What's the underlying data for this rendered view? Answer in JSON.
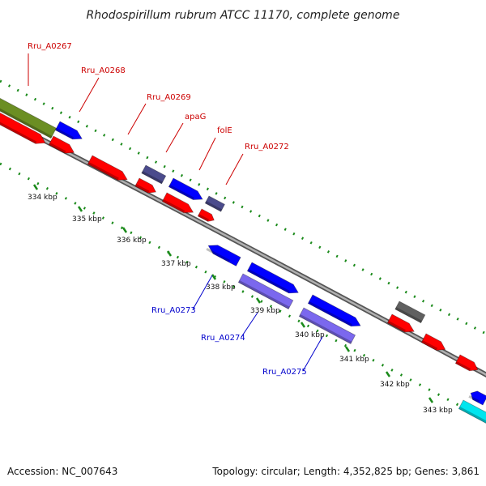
{
  "title": "Rhodospirillum rubrum ATCC 11170, complete genome",
  "footer": {
    "accession": "Accession: NC_007643",
    "topology": "Topology: circular; Length: 4,352,825 bp; Genes: 3,861"
  },
  "colors": {
    "backbone": "#8a8a8a",
    "tick_dots": "#1a8a1a",
    "forward_label": "#cc0000",
    "reverse_label": "#0000cc",
    "gene_red": "#ff0000",
    "gene_blue": "#0000ff",
    "gene_navy": "#4b4b8c",
    "gene_lavender": "#7b68ee",
    "gene_olive": "#6b8e23",
    "gene_gray": "#606060",
    "gene_cyan": "#00e5ee"
  },
  "ticks": [
    {
      "label": "334 kbp"
    },
    {
      "label": "335 kbp"
    },
    {
      "label": "336 kbp"
    },
    {
      "label": "337 kbp"
    },
    {
      "label": "338 kbp"
    },
    {
      "label": "339 kbp"
    },
    {
      "label": "340 kbp"
    },
    {
      "label": "341 kbp"
    },
    {
      "label": "342 kbp"
    },
    {
      "label": "343 kbp"
    }
  ],
  "gene_labels": [
    {
      "text": "Rru_A0267",
      "strand": "forward"
    },
    {
      "text": "Rru_A0268",
      "strand": "forward"
    },
    {
      "text": "Rru_A0269",
      "strand": "forward"
    },
    {
      "text": "apaG",
      "strand": "forward"
    },
    {
      "text": "folE",
      "strand": "forward"
    },
    {
      "text": "Rru_A0272",
      "strand": "forward"
    },
    {
      "text": "Rru_A0273",
      "strand": "reverse"
    },
    {
      "text": "Rru_A0274",
      "strand": "reverse"
    },
    {
      "text": "Rru_A0275",
      "strand": "reverse"
    }
  ]
}
